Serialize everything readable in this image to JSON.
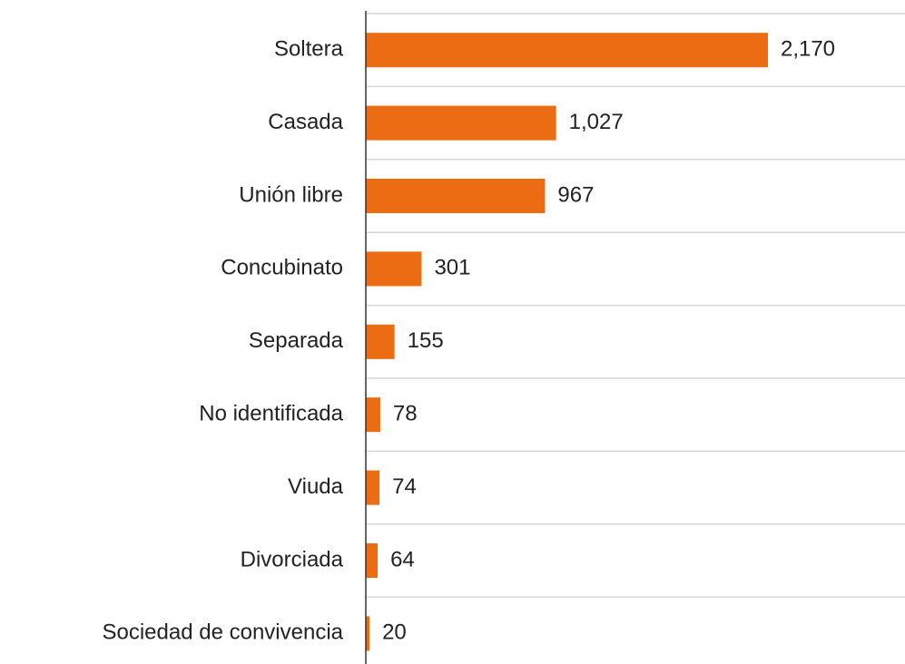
{
  "chart_data": {
    "type": "hbar",
    "categories": [
      "Soltera",
      "Casada",
      "Unión libre",
      "Concubinato",
      "Separada",
      "No identificada",
      "Viuda",
      "Divorciada",
      "Sociedad de convivencia"
    ],
    "values": [
      2170,
      1027,
      967,
      301,
      155,
      78,
      74,
      64,
      20
    ],
    "value_labels": [
      "2,170",
      "1,027",
      "967",
      "301",
      "155",
      "78",
      "74",
      "64",
      "20"
    ],
    "color": "#ec6c14",
    "xlim": [
      0,
      2900
    ],
    "grid": true
  }
}
